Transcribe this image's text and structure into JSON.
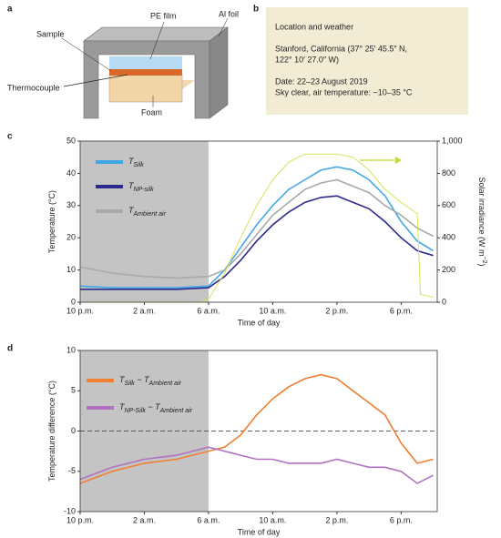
{
  "diagram": {
    "label": "a",
    "parts": [
      "PE film",
      "Al foil",
      "Sample",
      "Thermocouple",
      "Foam"
    ]
  },
  "info_box": {
    "label": "b",
    "lines": [
      "Location and weather",
      "Stanford, California (37° 25′ 45.5″ N,",
      "122° 10′ 27.0″ W)",
      "Date: 22–23 August 2019",
      "Sky clear, air temperature: ~10–35 °C"
    ]
  },
  "chart_data": [
    {
      "type": "line",
      "label": "c",
      "xlabel": "Time of day",
      "ylabel": [
        {
          "t": "Temperature (°C)"
        }
      ],
      "y2label": [
        {
          "t": "Solar irradiance (W m"
        },
        {
          "t": "−2",
          "sup": true
        },
        {
          "t": ")"
        }
      ],
      "xlim": [
        0,
        22.25
      ],
      "xticks": [
        {
          "value": 0,
          "label": "10 p.m."
        },
        {
          "value": 4,
          "label": "2 a.m."
        },
        {
          "value": 8,
          "label": "6 a.m."
        },
        {
          "value": 12,
          "label": "10 a.m."
        },
        {
          "value": 16,
          "label": "2 p.m."
        },
        {
          "value": 20,
          "label": "6 p.m."
        }
      ],
      "ylim": [
        0,
        50
      ],
      "yticks": [
        0,
        10,
        20,
        30,
        40,
        50
      ],
      "y2lim": [
        0,
        1000
      ],
      "y2ticks": [
        0,
        200,
        400,
        600,
        800,
        {
          "value": 1000,
          "label": "1,000"
        }
      ],
      "shade": [
        0,
        8
      ],
      "series": [
        {
          "name": [
            {
              "t": "T"
            },
            {
              "t": "Silk",
              "sub": true
            }
          ],
          "color": "#41a8e6",
          "x": [
            0,
            2,
            4,
            6,
            8,
            9,
            10,
            11,
            12,
            13,
            14,
            15,
            16,
            17,
            18,
            19,
            20,
            21,
            22
          ],
          "values": [
            5,
            4.5,
            4.5,
            4.5,
            5,
            10,
            17,
            24,
            30,
            35,
            38,
            41,
            42,
            41,
            38,
            33,
            25,
            19,
            16
          ]
        },
        {
          "name": [
            {
              "t": "T"
            },
            {
              "t": "NP-silk",
              "sub": true
            }
          ],
          "color": "#2b2a8c",
          "x": [
            0,
            2,
            4,
            6,
            8,
            9,
            10,
            11,
            12,
            13,
            14,
            15,
            16,
            17,
            18,
            19,
            20,
            21,
            22
          ],
          "values": [
            4,
            4,
            4,
            4,
            4.5,
            8,
            13,
            19,
            24,
            28,
            31,
            32.5,
            33,
            31,
            29,
            25,
            20,
            16,
            14.5
          ]
        },
        {
          "name": [
            {
              "t": "T"
            },
            {
              "t": "Ambient air",
              "sub": true
            }
          ],
          "color": "#a9a9a9",
          "x": [
            0,
            2,
            4,
            6,
            8,
            9,
            10,
            11,
            12,
            13,
            14,
            15,
            16,
            17,
            18,
            19,
            20,
            21,
            22
          ],
          "values": [
            11,
            9,
            8,
            7.5,
            8,
            10,
            15,
            21,
            27,
            31,
            35,
            37,
            38,
            36,
            34,
            30,
            27,
            23,
            20.5
          ]
        },
        {
          "color": "#d6e35a",
          "axis": "y2",
          "x": [
            0,
            7.5,
            8,
            9,
            10,
            11,
            12,
            13,
            14,
            15,
            16,
            17,
            18,
            19,
            20,
            21,
            21.2,
            22
          ],
          "values": [
            0,
            0,
            20,
            180,
            400,
            600,
            760,
            870,
            920,
            920,
            920,
            900,
            820,
            700,
            620,
            550,
            50,
            30
          ]
        }
      ]
    },
    {
      "type": "line",
      "label": "d",
      "xlabel": "Time of day",
      "ylabel": [
        {
          "t": "Temperature difference (°C)"
        }
      ],
      "xlim": [
        0,
        22.25
      ],
      "xticks": [
        {
          "value": 0,
          "label": "10 p.m."
        },
        {
          "value": 4,
          "label": "2 a.m."
        },
        {
          "value": 8,
          "label": "6 a.m."
        },
        {
          "value": 12,
          "label": "10 a.m."
        },
        {
          "value": 16,
          "label": "2 p.m."
        },
        {
          "value": 20,
          "label": "6 p.m."
        }
      ],
      "ylim": [
        -10,
        10
      ],
      "yticks": [
        -10,
        -5,
        0,
        5,
        10
      ],
      "shade": [
        0,
        8
      ],
      "reference_line": 0,
      "series": [
        {
          "name": [
            {
              "t": "T"
            },
            {
              "t": "Silk",
              "sub": true
            },
            {
              "t": " − T"
            },
            {
              "t": "Ambient air",
              "sub": true
            }
          ],
          "color": "#f07f32",
          "x": [
            0,
            2,
            4,
            6,
            8,
            9,
            10,
            11,
            12,
            13,
            14,
            15,
            16,
            17,
            18,
            19,
            20,
            21,
            22
          ],
          "values": [
            -6.5,
            -5,
            -4,
            -3.5,
            -2.5,
            -2,
            -0.5,
            2,
            4,
            5.5,
            6.5,
            7,
            6.5,
            5,
            3.5,
            2,
            -1.5,
            -4,
            -3.5
          ]
        },
        {
          "name": [
            {
              "t": "T"
            },
            {
              "t": "NP-Silk",
              "sub": true
            },
            {
              "t": " − T"
            },
            {
              "t": "Ambient air",
              "sub": true
            }
          ],
          "color": "#b072c0",
          "x": [
            0,
            2,
            4,
            6,
            8,
            9,
            10,
            11,
            12,
            13,
            14,
            15,
            16,
            17,
            18,
            19,
            20,
            21,
            22
          ],
          "values": [
            -6,
            -4.5,
            -3.5,
            -3,
            -2,
            -2.5,
            -3,
            -3.5,
            -3.5,
            -4,
            -4,
            -4,
            -3.5,
            -4,
            -4.5,
            -4.5,
            -5,
            -6.5,
            -5.5
          ]
        }
      ]
    }
  ]
}
